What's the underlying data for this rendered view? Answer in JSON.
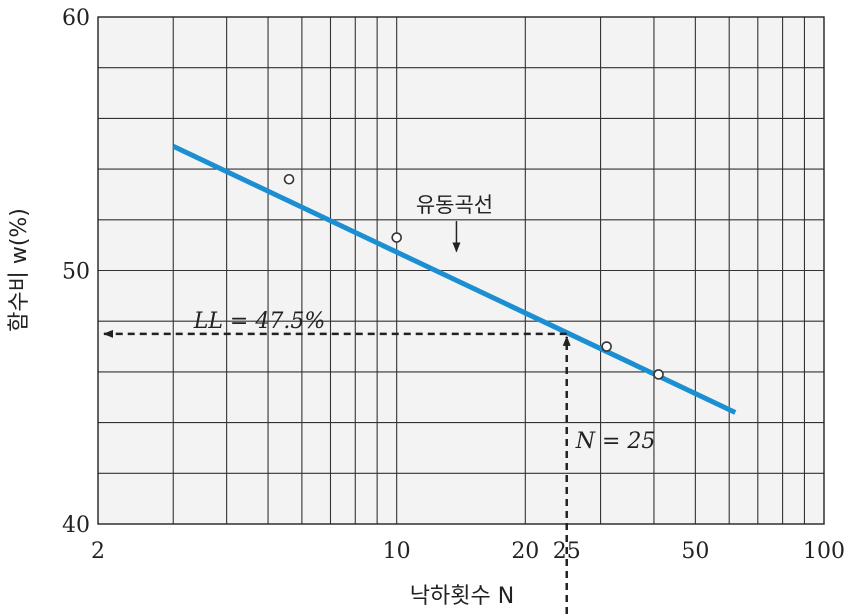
{
  "chart_data": {
    "type": "scatter",
    "xscale": "log",
    "xlim": [
      2,
      100
    ],
    "ylim": [
      40,
      60
    ],
    "grid": true,
    "xlabel": "낙하횟수 N",
    "ylabel": "함수비 w(%)",
    "x_ticks": [
      {
        "value": 2,
        "label": "2"
      },
      {
        "value": 10,
        "label": "10"
      },
      {
        "value": 20,
        "label": "20"
      },
      {
        "value": 25,
        "label": "25"
      },
      {
        "value": 50,
        "label": "50"
      },
      {
        "value": 100,
        "label": "100"
      }
    ],
    "y_ticks": [
      {
        "value": 40,
        "label": "40"
      },
      {
        "value": 50,
        "label": "50"
      },
      {
        "value": 60,
        "label": "60"
      }
    ],
    "points": [
      {
        "x": 5.6,
        "y": 53.6
      },
      {
        "x": 10,
        "y": 51.3
      },
      {
        "x": 31,
        "y": 47.0
      },
      {
        "x": 41,
        "y": 45.9
      }
    ],
    "flow_curve": {
      "x": [
        3.0,
        62.0
      ],
      "y": [
        54.9,
        44.4
      ]
    },
    "annotations": {
      "flow_curve_label": "유동곡선",
      "ll_label": "LL = 47.5%",
      "n_label": "N = 25"
    },
    "liquid_limit": {
      "n": 25,
      "w": 47.5
    },
    "colors": {
      "line": "#1b8fd2",
      "grid": "#333333",
      "plot_bg": "#f3f3f3",
      "dashed": "#222222"
    }
  }
}
